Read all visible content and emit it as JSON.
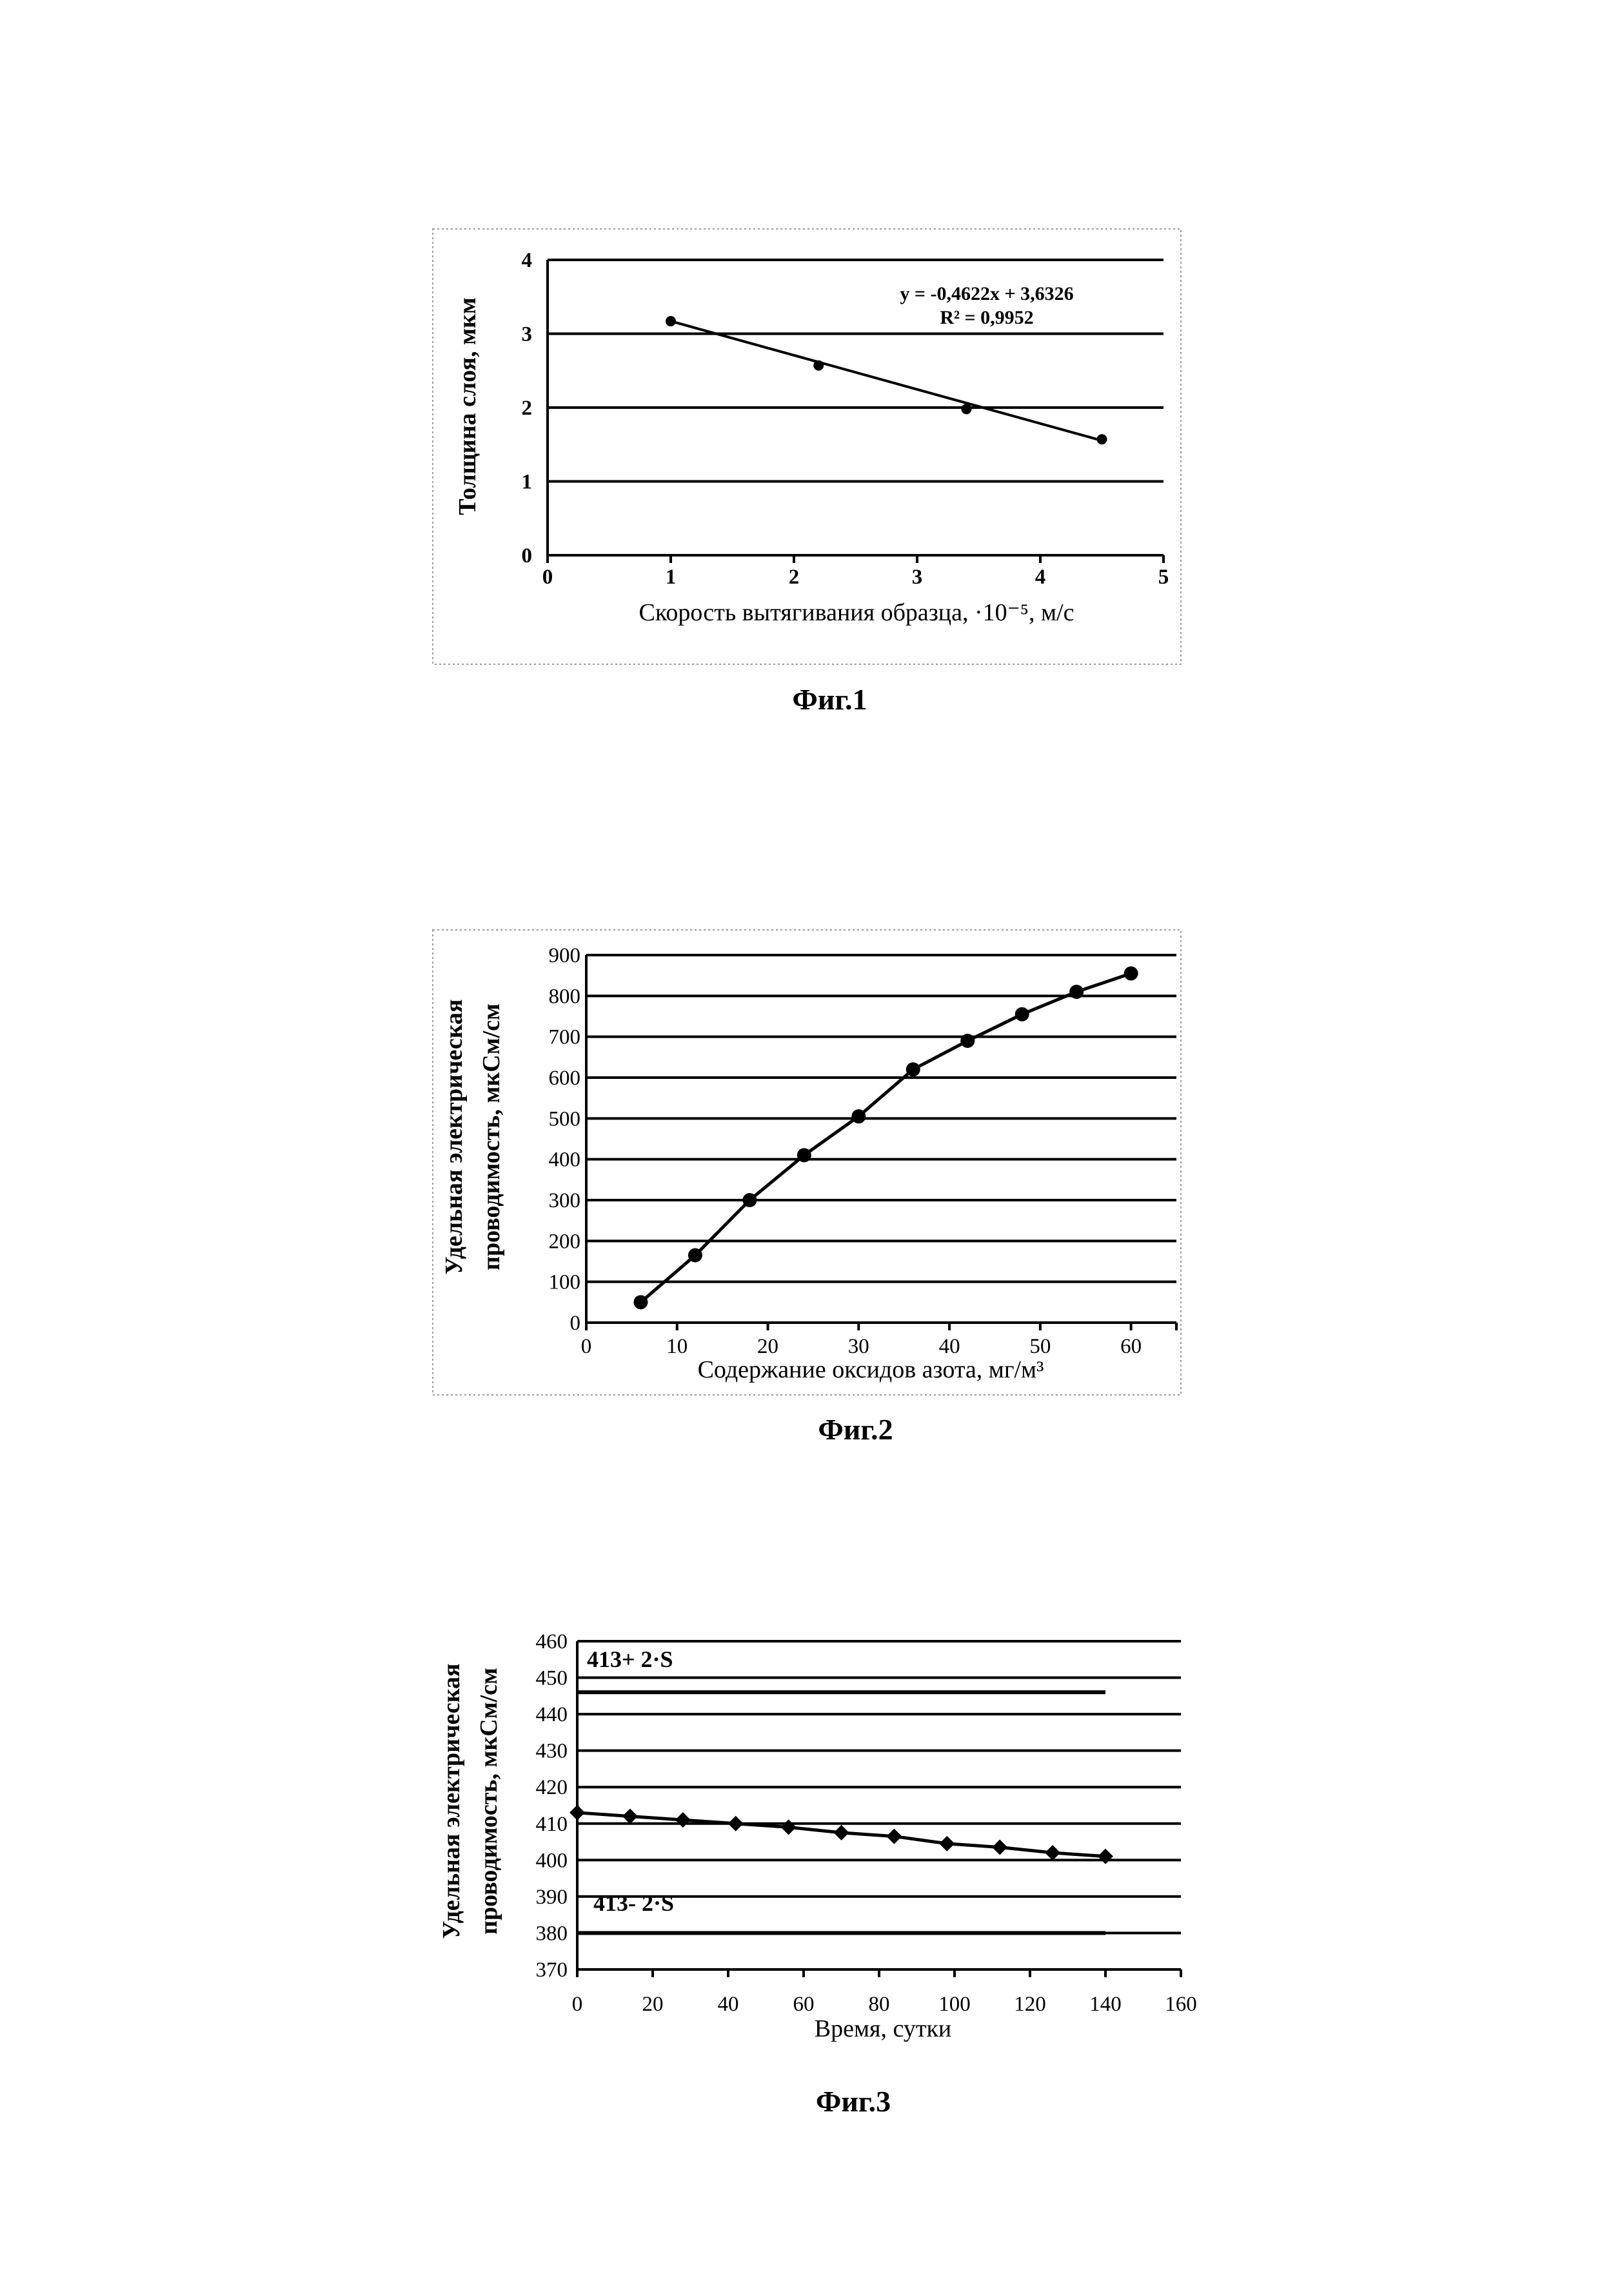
{
  "chart_data": [
    {
      "type": "scatter",
      "caption": "Фиг.1",
      "xlabel": "Скорость вытягивания образца, ·10⁻⁵, м/с",
      "ylabel": "Толщина слоя, мкм",
      "xlim": [
        0,
        5
      ],
      "ylim": [
        0,
        4
      ],
      "xticks": [
        "0",
        "1",
        "2",
        "3",
        "4",
        "5"
      ],
      "yticks": [
        "0",
        "1",
        "2",
        "3",
        "4"
      ],
      "grid": "horizontal",
      "series": [
        {
          "name": "data",
          "x": [
            1.0,
            2.2,
            3.4,
            4.5
          ],
          "y": [
            3.17,
            2.57,
            1.98,
            1.57
          ]
        }
      ],
      "trendline": {
        "type": "linear",
        "slope": -0.4622,
        "intercept": 3.6326,
        "x_range": [
          1.0,
          4.5
        ]
      },
      "annotations": [
        "y = -0,4622x + 3,6326",
        "R² = 0,9952"
      ]
    },
    {
      "type": "line",
      "caption": "Фиг.2",
      "xlabel": "Содержание оксидов азота, мг/м³",
      "ylabel": [
        "Удельная электрическая",
        "проводимость, мкСм/см"
      ],
      "xlim": [
        0,
        65
      ],
      "ylim": [
        0,
        900
      ],
      "xticks": [
        "0",
        "10",
        "20",
        "30",
        "40",
        "50",
        "60"
      ],
      "yticks": [
        "0",
        "100",
        "200",
        "300",
        "400",
        "500",
        "600",
        "700",
        "800",
        "900"
      ],
      "grid": "horizontal",
      "series": [
        {
          "name": "data",
          "x": [
            6,
            12,
            18,
            24,
            30,
            36,
            42,
            48,
            54,
            60
          ],
          "y": [
            50,
            165,
            300,
            410,
            505,
            620,
            690,
            755,
            810,
            855
          ]
        }
      ]
    },
    {
      "type": "line",
      "caption": "Фиг.3",
      "xlabel": "Время, сутки",
      "ylabel": [
        "Удельная электрическая",
        "проводимость, мкСм/см"
      ],
      "xlim": [
        0,
        160
      ],
      "ylim": [
        370,
        460
      ],
      "xticks": [
        "0",
        "20",
        "40",
        "60",
        "80",
        "100",
        "120",
        "140",
        "160"
      ],
      "yticks": [
        "370",
        "380",
        "390",
        "400",
        "410",
        "420",
        "430",
        "440",
        "450",
        "460"
      ],
      "grid": "horizontal",
      "series": [
        {
          "name": "data",
          "x": [
            0,
            14,
            28,
            42,
            56,
            70,
            84,
            98,
            112,
            126,
            140
          ],
          "y": [
            413,
            412,
            411,
            410,
            409,
            407.5,
            406.5,
            404.5,
            403.5,
            402,
            401
          ]
        },
        {
          "name": "413+ 2·S",
          "x": [
            0,
            140
          ],
          "y": [
            446,
            446
          ]
        },
        {
          "name": "413- 2·S",
          "x": [
            0,
            140
          ],
          "y": [
            380,
            380
          ]
        }
      ],
      "annotations": [
        "413+ 2·S",
        "413- 2·S"
      ]
    }
  ]
}
